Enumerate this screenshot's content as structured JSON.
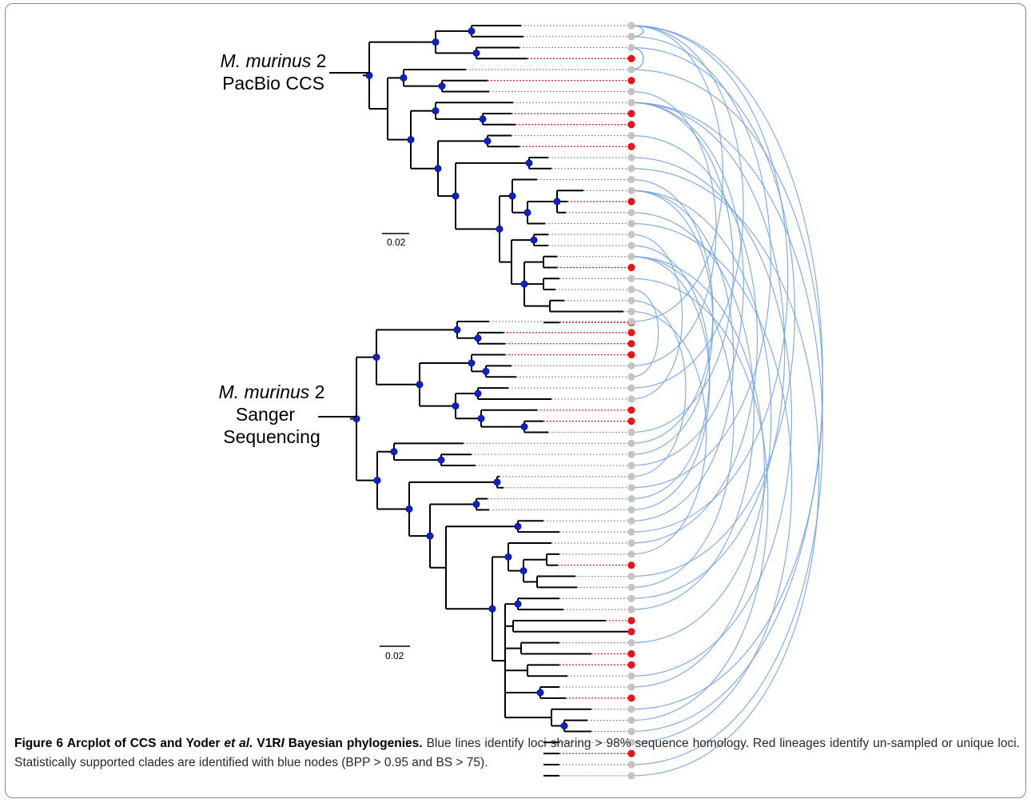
{
  "figure": {
    "top_clade": {
      "line1_italic": "M. murinus",
      "line1_rest": " 2",
      "line2": "PacBio CCS"
    },
    "bottom_clade": {
      "line1_italic": "M. murinus",
      "line1_rest": " 2",
      "line2": "Sanger",
      "line3": "Sequencing"
    },
    "scale_bar_top": "0.02",
    "scale_bar_bottom": "0.02",
    "colors": {
      "arc": "#6fa0e0",
      "unique_tip": "#e8141a",
      "shared_tip": "#c4c4c4",
      "supported_node": "#1020c8",
      "branch": "#000000"
    }
  },
  "caption": {
    "label": "Figure 6",
    "title_part1": "Arcplot of CCS and Yoder ",
    "title_italic": "et al.",
    "title_part2": " V1R",
    "title_italic2": "I",
    "title_part3": " Bayesian phylogenies.",
    "body": "Blue lines identify loci sharing > 98% sequence homology. Red lineages identify un-sampled or unique loci. Statistically supported clades are identified with blue nodes (BPP > 0.95 and BS > 75)."
  },
  "chart_data": {
    "type": "arcplot",
    "trees": [
      {
        "name": "M. murinus 2 PacBio CCS",
        "tip_count": 28,
        "unique_tips": [
          3,
          5,
          8,
          9,
          11,
          16,
          22,
          27
        ]
      },
      {
        "name": "M. murinus 2 Sanger Sequencing",
        "tip_count": 42,
        "unique_tips": [
          1,
          2,
          3,
          8,
          9,
          22,
          27,
          28,
          30,
          31,
          34,
          39
        ]
      }
    ]
  }
}
